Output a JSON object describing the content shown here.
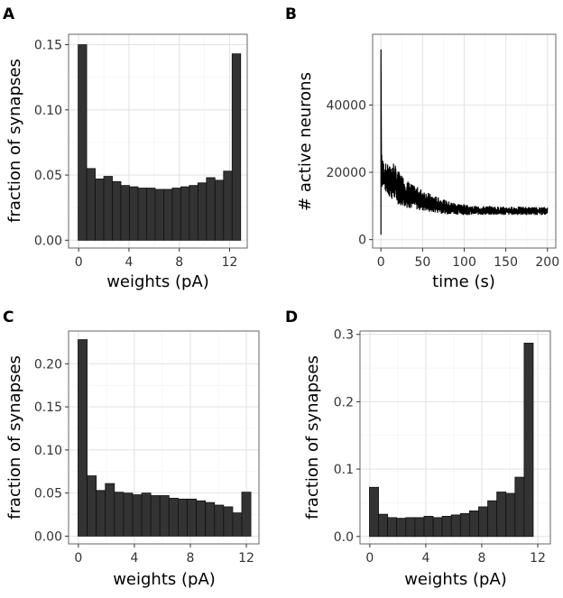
{
  "chart_data": [
    {
      "panel": "A",
      "type": "bar",
      "xlabel": "weights (pA)",
      "ylabel": "fraction of synapses",
      "xticks": [
        0,
        4,
        8,
        12
      ],
      "yticks": [
        0.0,
        0.05,
        0.1,
        0.15
      ],
      "ytick_labels": [
        "0.00",
        "0.05",
        "0.10",
        "0.15"
      ],
      "xlim": [
        -0.8,
        13.4
      ],
      "ylim": [
        -0.006,
        0.158
      ],
      "bin_centers": [
        0.3,
        0.98,
        1.66,
        2.34,
        3.02,
        3.7,
        4.38,
        5.06,
        5.74,
        6.42,
        7.1,
        7.78,
        8.46,
        9.14,
        9.82,
        10.5,
        11.18,
        11.86,
        12.54
      ],
      "bin_width": 0.68,
      "values": [
        0.15,
        0.055,
        0.047,
        0.049,
        0.045,
        0.042,
        0.041,
        0.04,
        0.04,
        0.039,
        0.039,
        0.04,
        0.041,
        0.042,
        0.044,
        0.048,
        0.046,
        0.053,
        0.143
      ]
    },
    {
      "panel": "B",
      "type": "line",
      "xlabel": "time (s)",
      "ylabel": "# active neurons",
      "xticks": [
        0,
        50,
        100,
        150,
        200
      ],
      "yticks": [
        0,
        20000,
        40000
      ],
      "ytick_labels": [
        "0",
        "20000",
        "40000"
      ],
      "xlim": [
        -10,
        210
      ],
      "ylim": [
        -2500,
        61000
      ],
      "x": [
        0,
        0.5,
        1,
        2,
        4,
        7,
        10,
        15,
        20,
        25,
        30,
        40,
        50,
        60,
        70,
        80,
        90,
        100,
        110,
        120,
        130,
        140,
        150,
        160,
        170,
        180,
        190,
        200
      ],
      "y_upper": [
        56500,
        34000,
        27000,
        24000,
        23000,
        22500,
        22000,
        23500,
        20500,
        19500,
        18000,
        16000,
        15000,
        13500,
        12500,
        11500,
        11000,
        10500,
        10000,
        10000,
        10000,
        9800,
        9800,
        9800,
        9800,
        9700,
        9700,
        9700
      ],
      "y_lower": [
        1500,
        12000,
        15000,
        16000,
        14500,
        13500,
        12500,
        11500,
        10500,
        10000,
        9500,
        9000,
        8500,
        8000,
        7800,
        7500,
        7500,
        7300,
        7300,
        7300,
        7300,
        7300,
        7300,
        7300,
        7300,
        7300,
        7300,
        7300
      ]
    },
    {
      "panel": "C",
      "type": "bar",
      "xlabel": "weights (pA)",
      "ylabel": "fraction of synapses",
      "xticks": [
        0,
        4,
        8,
        12
      ],
      "yticks": [
        0.0,
        0.05,
        0.1,
        0.15,
        0.2
      ],
      "ytick_labels": [
        "0.00",
        "0.05",
        "0.10",
        "0.15",
        "0.20"
      ],
      "xlim": [
        -0.7,
        12.9
      ],
      "ylim": [
        -0.009,
        0.238
      ],
      "bin_centers": [
        0.3,
        0.95,
        1.6,
        2.25,
        2.9,
        3.55,
        4.2,
        4.85,
        5.5,
        6.15,
        6.8,
        7.45,
        8.1,
        8.75,
        9.4,
        10.05,
        10.7,
        11.35,
        12.0
      ],
      "bin_width": 0.65,
      "values": [
        0.228,
        0.07,
        0.053,
        0.061,
        0.051,
        0.05,
        0.048,
        0.05,
        0.047,
        0.047,
        0.044,
        0.043,
        0.043,
        0.041,
        0.039,
        0.036,
        0.034,
        0.027,
        0.051
      ]
    },
    {
      "panel": "D",
      "type": "bar",
      "xlabel": "weights (pA)",
      "ylabel": "fraction of synapses",
      "xticks": [
        0,
        4,
        8,
        12
      ],
      "yticks": [
        0.0,
        0.1,
        0.2,
        0.3
      ],
      "ytick_labels": [
        "0.0",
        "0.1",
        "0.2",
        "0.3"
      ],
      "xlim": [
        -0.7,
        12.9
      ],
      "ylim": [
        -0.011,
        0.305
      ],
      "bin_centers": [
        0.3,
        0.95,
        1.6,
        2.25,
        2.9,
        3.55,
        4.2,
        4.85,
        5.5,
        6.15,
        6.8,
        7.45,
        8.1,
        8.75,
        9.4,
        10.05,
        10.7,
        11.35,
        12.0
      ],
      "bin_width": 0.65,
      "values": [
        0.073,
        0.033,
        0.028,
        0.027,
        0.028,
        0.028,
        0.03,
        0.028,
        0.03,
        0.032,
        0.034,
        0.038,
        0.044,
        0.053,
        0.066,
        0.064,
        0.088,
        0.287,
        0.0
      ]
    }
  ]
}
